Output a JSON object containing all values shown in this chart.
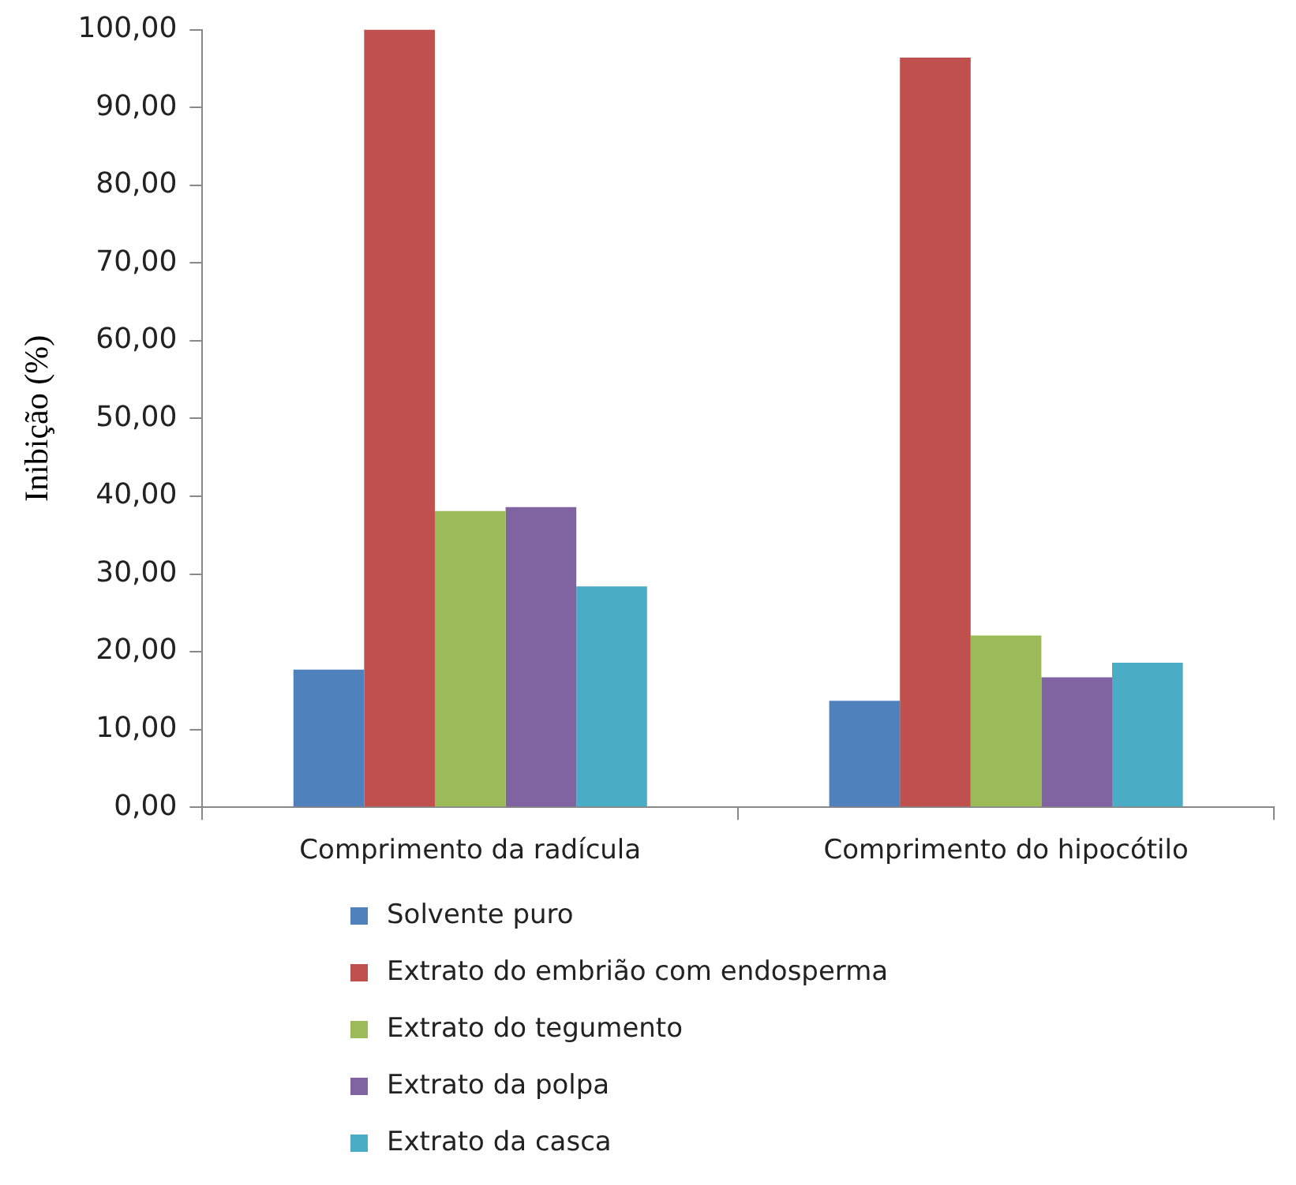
{
  "chart_data": {
    "type": "bar",
    "ylabel": "Inibição (%)",
    "categories": [
      "Comprimento da radícula",
      "Comprimento do hipocótilo"
    ],
    "series": [
      {
        "name": "Solvente puro",
        "color": "#4f81bd",
        "values": [
          17.7,
          13.7
        ]
      },
      {
        "name": "Extrato do embrião com endosperma",
        "color": "#c0504d",
        "values": [
          100,
          96.4
        ]
      },
      {
        "name": "Extrato do tegumento",
        "color": "#9bbb59",
        "values": [
          38.1,
          22.1
        ]
      },
      {
        "name": "Extrato da polpa",
        "color": "#8064a2",
        "values": [
          38.6,
          16.7
        ]
      },
      {
        "name": "Extrato da casca",
        "color": "#4bacc6",
        "values": [
          28.4,
          18.6
        ]
      }
    ],
    "ylim": [
      0,
      100
    ],
    "yticks": [
      {
        "value": 0,
        "label": "0,00"
      },
      {
        "value": 10,
        "label": "10,00"
      },
      {
        "value": 20,
        "label": "20,00"
      },
      {
        "value": 30,
        "label": "30,00"
      },
      {
        "value": 40,
        "label": "40,00"
      },
      {
        "value": 50,
        "label": "50,00"
      },
      {
        "value": 60,
        "label": "60,00"
      },
      {
        "value": 70,
        "label": "70,00"
      },
      {
        "value": 80,
        "label": "80,00"
      },
      {
        "value": 90,
        "label": "90,00"
      },
      {
        "value": 100,
        "label": "100,00"
      }
    ],
    "grid": false,
    "legend": "bottom"
  }
}
